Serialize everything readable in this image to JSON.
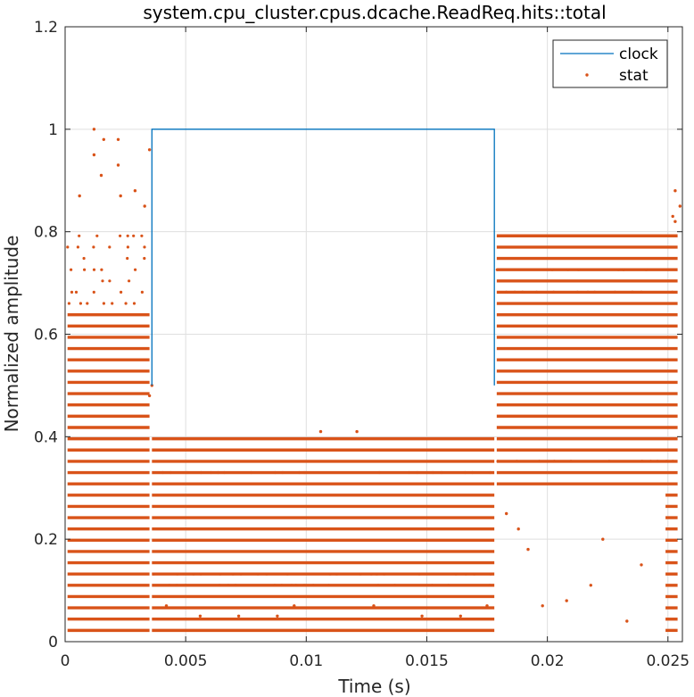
{
  "chart_data": {
    "type": "line",
    "title": "system.cpu_cluster.cpus.dcache.ReadReq.hits::total",
    "xlabel": "Time (s)",
    "ylabel": "Normalized amplitude",
    "xlim": [
      0,
      0.0256
    ],
    "ylim": [
      0,
      1.2
    ],
    "x_ticks": [
      0,
      0.005,
      0.01,
      0.015,
      0.02,
      0.025
    ],
    "x_tick_labels": [
      "0",
      "0.005",
      "0.01",
      "0.015",
      "0.02",
      "0.025"
    ],
    "y_ticks": [
      0,
      0.2,
      0.4,
      0.6,
      0.8,
      1,
      1.2
    ],
    "y_tick_labels": [
      "0",
      "0.2",
      "0.4",
      "0.6",
      "0.8",
      "1",
      "1.2"
    ],
    "grid": true,
    "legend_position": "top-right",
    "series": [
      {
        "name": "clock",
        "style": "line",
        "color": "#0072BD",
        "points": [
          [
            0.0036,
            0.5
          ],
          [
            0.0036,
            1.0
          ],
          [
            0.0178,
            1.0
          ],
          [
            0.0178,
            0.5
          ]
        ]
      },
      {
        "name": "stat",
        "style": "dots",
        "color": "#D95319",
        "segments": [
          {
            "x_range": [
              0.0001,
              0.0035
            ],
            "dense_levels": [
              0.022,
              0.044,
              0.066,
              0.088,
              0.11,
              0.132,
              0.154,
              0.176,
              0.198,
              0.22,
              0.242,
              0.264,
              0.286,
              0.308,
              0.33,
              0.352,
              0.374,
              0.396,
              0.418,
              0.44,
              0.462,
              0.484,
              0.506,
              0.528,
              0.55,
              0.572,
              0.594,
              0.616,
              0.638
            ],
            "sparse_levels": [
              0.66,
              0.682,
              0.704,
              0.726,
              0.748,
              0.77,
              0.792
            ]
          },
          {
            "x_range": [
              0.0036,
              0.0178
            ],
            "dense_levels": [
              0.022,
              0.044,
              0.066,
              0.088,
              0.11,
              0.132,
              0.154,
              0.176,
              0.198,
              0.22,
              0.242,
              0.264,
              0.286,
              0.308,
              0.33,
              0.352,
              0.374,
              0.396
            ],
            "sparse_levels": [
              0.11,
              0.132,
              0.33
            ]
          },
          {
            "x_range": [
              0.0179,
              0.0254
            ],
            "dense_levels": [
              0.308,
              0.33,
              0.352,
              0.374,
              0.396,
              0.418,
              0.44,
              0.462,
              0.484,
              0.506,
              0.528,
              0.55,
              0.572,
              0.594,
              0.616,
              0.638,
              0.66,
              0.682,
              0.704,
              0.726,
              0.748,
              0.77,
              0.792
            ],
            "sparse_levels": [
              0.352,
              0.682,
              0.726
            ]
          },
          {
            "x_range": [
              0.0249,
              0.0254
            ],
            "dense_levels": [
              0.022,
              0.044,
              0.066,
              0.088,
              0.11,
              0.132,
              0.154,
              0.176,
              0.198,
              0.22,
              0.242,
              0.264,
              0.286
            ],
            "sparse_levels": []
          }
        ],
        "scattered_points": [
          [
            0.0012,
            1.0
          ],
          [
            0.0016,
            0.98
          ],
          [
            0.0022,
            0.98
          ],
          [
            0.0035,
            0.96
          ],
          [
            0.0006,
            0.87
          ],
          [
            0.0012,
            0.95
          ],
          [
            0.0015,
            0.91
          ],
          [
            0.0022,
            0.93
          ],
          [
            0.0023,
            0.87
          ],
          [
            0.0029,
            0.88
          ],
          [
            0.0033,
            0.85
          ],
          [
            0.0106,
            0.41
          ],
          [
            0.0121,
            0.41
          ],
          [
            0.0036,
            0.5
          ],
          [
            0.0035,
            0.48
          ],
          [
            0.0042,
            0.07
          ],
          [
            0.0056,
            0.05
          ],
          [
            0.0072,
            0.05
          ],
          [
            0.0088,
            0.05
          ],
          [
            0.0095,
            0.07
          ],
          [
            0.0128,
            0.07
          ],
          [
            0.0148,
            0.05
          ],
          [
            0.0164,
            0.05
          ],
          [
            0.0175,
            0.07
          ],
          [
            0.0183,
            0.25
          ],
          [
            0.0188,
            0.22
          ],
          [
            0.0192,
            0.18
          ],
          [
            0.0198,
            0.07
          ],
          [
            0.0208,
            0.08
          ],
          [
            0.0218,
            0.11
          ],
          [
            0.0223,
            0.2
          ],
          [
            0.0233,
            0.04
          ],
          [
            0.0239,
            0.15
          ],
          [
            0.0252,
            0.83
          ],
          [
            0.0255,
            0.85
          ],
          [
            0.0253,
            0.88
          ],
          [
            0.0253,
            0.82
          ]
        ]
      }
    ]
  },
  "legend": {
    "items": [
      {
        "label": "clock",
        "color": "#0072BD"
      },
      {
        "label": "stat",
        "color": "#D95319"
      }
    ]
  }
}
